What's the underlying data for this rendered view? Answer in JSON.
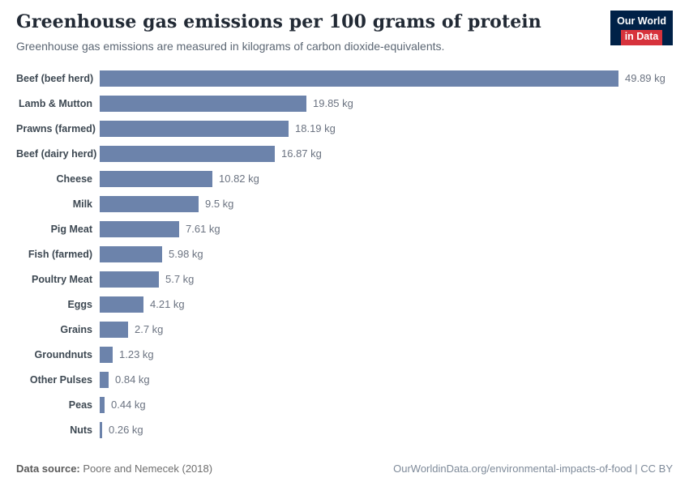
{
  "logo": {
    "line1": "Our World",
    "line2": "in Data"
  },
  "header": {
    "title": "Greenhouse gas emissions per 100 grams of protein",
    "subtitle": "Greenhouse gas emissions are measured in kilograms of carbon dioxide-equivalents."
  },
  "chart_data": {
    "type": "bar",
    "orientation": "horizontal",
    "title": "Greenhouse gas emissions per 100 grams of protein",
    "unit": "kg CO2-equivalents",
    "categories": [
      "Beef (beef herd)",
      "Lamb & Mutton",
      "Prawns (farmed)",
      "Beef (dairy herd)",
      "Cheese",
      "Milk",
      "Pig Meat",
      "Fish (farmed)",
      "Poultry Meat",
      "Eggs",
      "Grains",
      "Groundnuts",
      "Other Pulses",
      "Peas",
      "Nuts"
    ],
    "values": [
      49.89,
      19.85,
      18.19,
      16.87,
      10.82,
      9.5,
      7.61,
      5.98,
      5.7,
      4.21,
      2.7,
      1.23,
      0.84,
      0.44,
      0.26
    ],
    "value_labels": [
      "49.89 kg",
      "19.85 kg",
      "18.19 kg",
      "16.87 kg",
      "10.82 kg",
      "9.5 kg",
      "7.61 kg",
      "5.98 kg",
      "5.7 kg",
      "4.21 kg",
      "2.7 kg",
      "1.23 kg",
      "0.84 kg",
      "0.44 kg",
      "0.26 kg"
    ],
    "xlim": [
      0,
      49.89
    ],
    "grid": false,
    "legend": "none",
    "bar_color": "#6c83ab"
  },
  "footer": {
    "source_label": "Data source:",
    "source_text": " Poore and Nemecek (2018)",
    "credit": "OurWorldinData.org/environmental-impacts-of-food | CC BY"
  }
}
